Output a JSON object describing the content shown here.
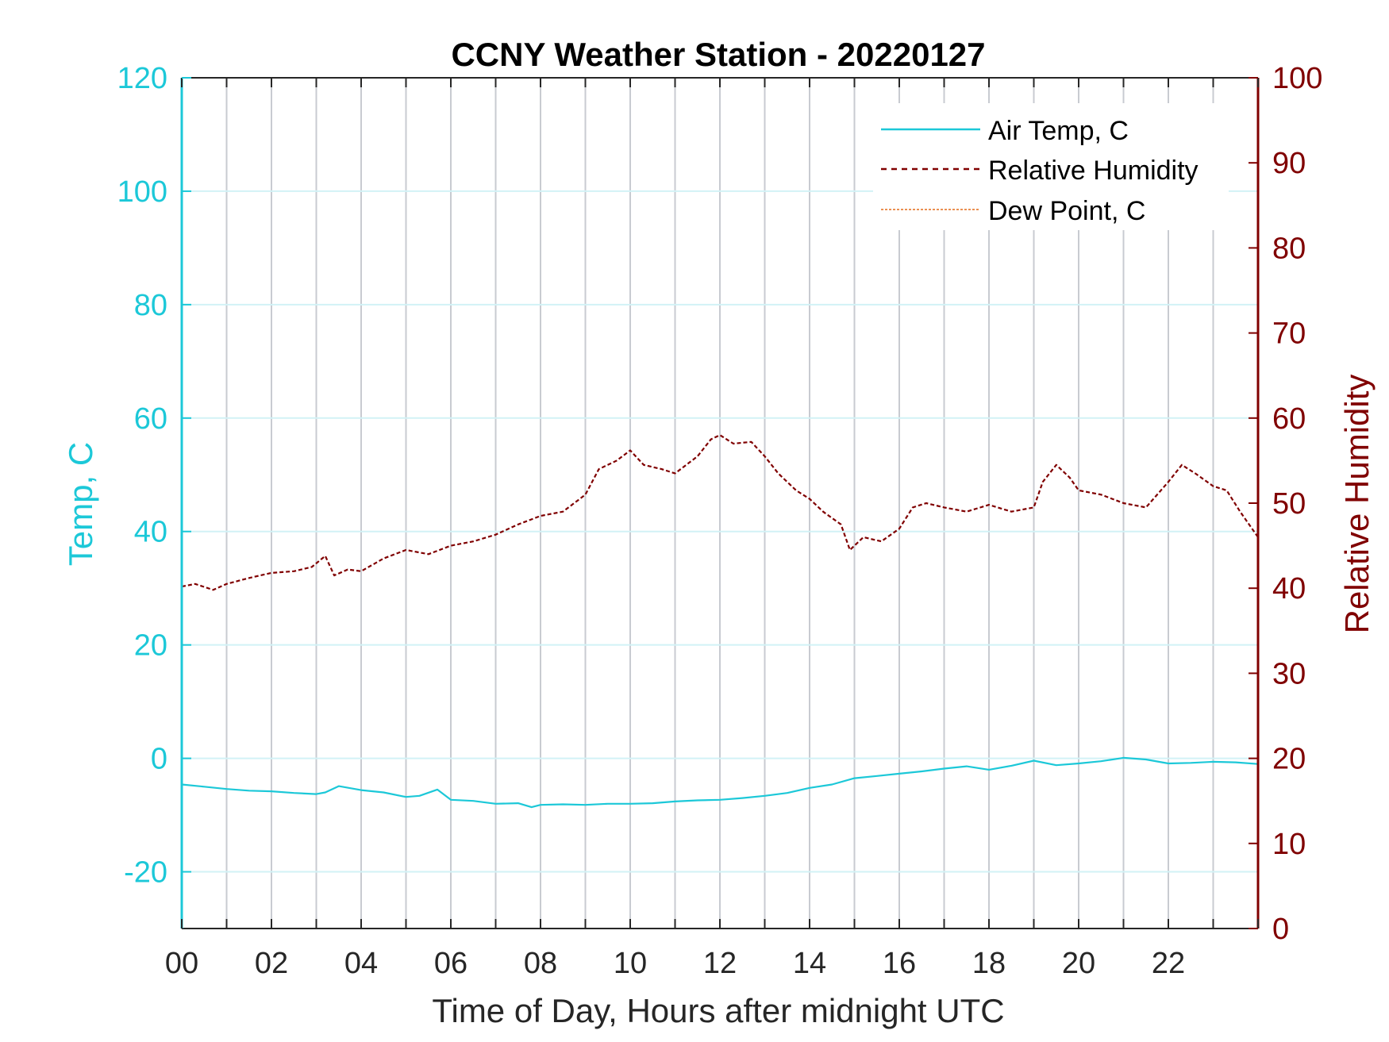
{
  "colors": {
    "temp": "#1cc8d8",
    "humidity": "#800000",
    "dew": "#e36c1a",
    "grid_v": "#c8cbd1",
    "grid_h": "#d2f2f6",
    "axis_dark": "#262626",
    "text_dark": "#262626"
  },
  "chart_data": {
    "type": "line",
    "title": "CCNY Weather Station - 20220127",
    "xlabel": "Time of Day, Hours after midnight UTC",
    "ylabel_left": "Temp, C",
    "ylabel_right": "Relative Humidity",
    "xlim": [
      0,
      24
    ],
    "ylim_left": [
      -30,
      120
    ],
    "ylim_right": [
      0,
      100
    ],
    "x_ticks": [
      0,
      2,
      4,
      6,
      8,
      10,
      12,
      14,
      16,
      18,
      20,
      22
    ],
    "x_tick_labels": [
      "00",
      "02",
      "04",
      "06",
      "08",
      "10",
      "12",
      "14",
      "16",
      "18",
      "20",
      "22"
    ],
    "y_left_ticks": [
      -20,
      0,
      20,
      40,
      60,
      80,
      100,
      120
    ],
    "y_left_tick_labels": [
      "-20",
      "0",
      "20",
      "40",
      "60",
      "80",
      "100",
      "120"
    ],
    "y_right_ticks": [
      0,
      10,
      20,
      30,
      40,
      50,
      60,
      70,
      80,
      90,
      100
    ],
    "y_right_tick_labels": [
      "0",
      "10",
      "20",
      "30",
      "40",
      "50",
      "60",
      "70",
      "80",
      "90",
      "100"
    ],
    "legend": [
      "Air Temp, C",
      "Relative Humidity",
      "Dew Point, C"
    ],
    "legend_location": "top-right",
    "grid": true,
    "series": [
      {
        "name": "Air Temp, C",
        "axis": "left",
        "x": [
          0,
          0.5,
          1,
          1.5,
          2,
          2.5,
          3,
          3.2,
          3.5,
          4,
          4.5,
          5,
          5.3,
          5.7,
          6,
          6.5,
          7,
          7.5,
          7.8,
          8,
          8.5,
          9,
          9.5,
          10,
          10.5,
          11,
          11.5,
          12,
          12.5,
          13,
          13.5,
          14,
          14.5,
          15,
          15.5,
          16,
          16.5,
          17,
          17.5,
          18,
          18.5,
          19,
          19.5,
          20,
          20.5,
          21,
          21.5,
          22,
          22.5,
          23,
          23.5,
          24
        ],
        "values": [
          -4.6,
          -5.0,
          -5.4,
          -5.7,
          -5.8,
          -6.1,
          -6.3,
          -6.0,
          -4.9,
          -5.6,
          -6.0,
          -6.8,
          -6.6,
          -5.5,
          -7.3,
          -7.5,
          -8.0,
          -7.9,
          -8.6,
          -8.2,
          -8.1,
          -8.2,
          -8.0,
          -8.0,
          -7.9,
          -7.6,
          -7.4,
          -7.3,
          -7.0,
          -6.6,
          -6.1,
          -5.2,
          -4.6,
          -3.5,
          -3.1,
          -2.7,
          -2.3,
          -1.8,
          -1.4,
          -2.0,
          -1.3,
          -0.4,
          -1.2,
          -0.9,
          -0.5,
          0.1,
          -0.2,
          -0.9,
          -0.8,
          -0.6,
          -0.7,
          -1.0
        ]
      },
      {
        "name": "Relative Humidity",
        "axis": "right",
        "x": [
          0,
          0.3,
          0.7,
          1,
          1.5,
          2,
          2.5,
          2.9,
          3.2,
          3.4,
          3.7,
          4,
          4.5,
          5,
          5.5,
          6,
          6.5,
          7,
          7.5,
          8,
          8.5,
          9,
          9.3,
          9.7,
          10,
          10.3,
          10.7,
          11,
          11.5,
          11.8,
          12,
          12.3,
          12.7,
          13,
          13.3,
          13.7,
          14,
          14.3,
          14.7,
          14.9,
          15.2,
          15.6,
          16,
          16.3,
          16.6,
          17,
          17.5,
          18,
          18.5,
          19,
          19.2,
          19.5,
          19.8,
          20,
          20.5,
          21,
          21.5,
          22,
          22.3,
          22.6,
          23,
          23.3,
          23.6,
          24
        ],
        "values": [
          40.2,
          40.5,
          39.8,
          40.5,
          41.2,
          41.8,
          42.0,
          42.5,
          43.8,
          41.5,
          42.2,
          42.0,
          43.5,
          44.5,
          44.0,
          45.0,
          45.5,
          46.3,
          47.5,
          48.5,
          49.0,
          51.0,
          54.0,
          55.0,
          56.2,
          54.5,
          54.0,
          53.5,
          55.5,
          57.5,
          58.0,
          57.0,
          57.2,
          55.5,
          53.5,
          51.5,
          50.5,
          49.0,
          47.5,
          44.5,
          46.0,
          45.5,
          47.0,
          49.5,
          50.0,
          49.5,
          49.0,
          49.8,
          49.0,
          49.5,
          52.5,
          54.5,
          53.0,
          51.5,
          51.0,
          50.0,
          49.5,
          52.5,
          54.5,
          53.5,
          52.0,
          51.5,
          49.0,
          46.0
        ]
      },
      {
        "name": "Dew Point, C",
        "axis": "left",
        "x": [],
        "values": []
      }
    ]
  }
}
